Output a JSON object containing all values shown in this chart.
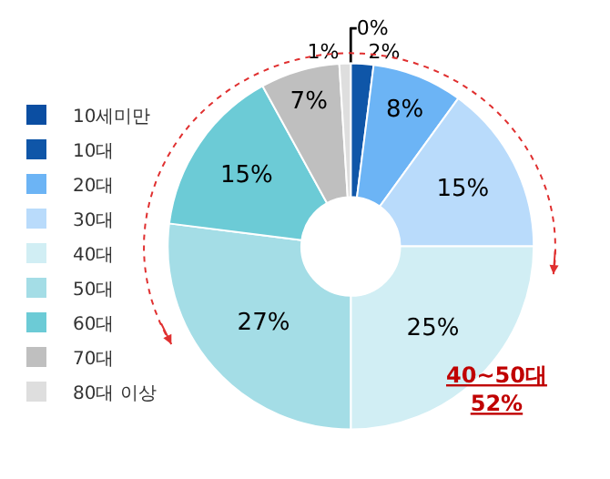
{
  "chart_data": {
    "type": "donut",
    "categories": [
      "10세미만",
      "10대",
      "20대",
      "30대",
      "40대",
      "50대",
      "60대",
      "70대",
      "80대 이상"
    ],
    "values": [
      0,
      2,
      8,
      15,
      25,
      27,
      15,
      7,
      1
    ],
    "value_labels": [
      "0%",
      "2%",
      "8%",
      "15%",
      "25%",
      "27%",
      "15%",
      "7%",
      "1%"
    ],
    "colors": [
      "#0b4ea2",
      "#0f56a8",
      "#6cb4f5",
      "#b9dbfb",
      "#d1eef4",
      "#a4dde6",
      "#6ccbd6",
      "#bfbfbf",
      "#dedede"
    ],
    "legend": "left",
    "annotations": [
      "40~50대\n52%"
    ]
  }
}
